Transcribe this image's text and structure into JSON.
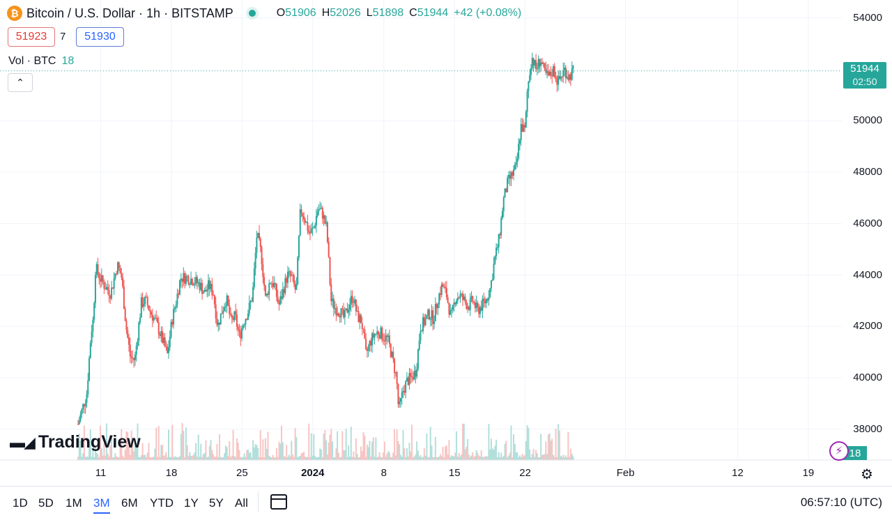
{
  "header": {
    "icon_letter": "₿",
    "title": "Bitcoin / U.S. Dollar · 1h · BITSTAMP",
    "ohlc": {
      "o_label": "O",
      "o": "51906",
      "h_label": "H",
      "h": "52026",
      "l_label": "L",
      "l": "51898",
      "c_label": "C",
      "c": "51944",
      "change": "+42 (+0.08%)"
    }
  },
  "trade": {
    "sell": "51923",
    "spread": "7",
    "buy": "51930"
  },
  "volume_indicator": {
    "label": "Vol · BTC",
    "value": "18"
  },
  "price_tag": {
    "price": "51944",
    "countdown": "02:50"
  },
  "volume_tag": "18",
  "watermark": "TradingView",
  "ranges": [
    {
      "label": "1D",
      "active": false
    },
    {
      "label": "5D",
      "active": false
    },
    {
      "label": "1M",
      "active": false
    },
    {
      "label": "3M",
      "active": true
    },
    {
      "label": "6M",
      "active": false
    },
    {
      "label": "YTD",
      "active": false
    },
    {
      "label": "1Y",
      "active": false
    },
    {
      "label": "5Y",
      "active": false
    },
    {
      "label": "All",
      "active": false
    }
  ],
  "clock": "06:57:10 (UTC)",
  "colors": {
    "up": "#26a69a",
    "down": "#ef5350",
    "accent": "#2962ff"
  },
  "icons": [
    "bitcoin-icon",
    "market-open-dot",
    "chevron-up-icon",
    "calendar-icon",
    "settings-icon",
    "lightning-icon",
    "tradingview-logo"
  ],
  "chart_data": {
    "type": "candlestick",
    "ylim": [
      36800,
      54700
    ],
    "y_ticks": [
      54000,
      50000,
      48000,
      46000,
      44000,
      42000,
      40000,
      38000
    ],
    "x_ticks": [
      {
        "label": "11",
        "pos": 0.052,
        "bold": false
      },
      {
        "label": "18",
        "pos": 0.214,
        "bold": false
      },
      {
        "label": "25",
        "pos": 0.376,
        "bold": false
      },
      {
        "label": "2024",
        "pos": 0.538,
        "bold": true
      },
      {
        "label": "8",
        "pos": 0.701,
        "bold": false
      },
      {
        "label": "15",
        "pos": 0.863,
        "bold": false
      },
      {
        "label": "22",
        "pos": 1.025,
        "bold": false
      },
      {
        "label": "Feb",
        "pos": 1.255,
        "bold": false
      },
      {
        "label": "12",
        "pos": 1.512,
        "bold": false
      },
      {
        "label": "19",
        "pos": 1.674,
        "bold": false
      }
    ],
    "last_price": 51944,
    "close_path": [
      [
        0.0,
        38200
      ],
      [
        0.01,
        38800
      ],
      [
        0.02,
        39400
      ],
      [
        0.03,
        41800
      ],
      [
        0.035,
        42300
      ],
      [
        0.04,
        44300
      ],
      [
        0.05,
        43900
      ],
      [
        0.06,
        43600
      ],
      [
        0.075,
        43300
      ],
      [
        0.09,
        44400
      ],
      [
        0.1,
        43900
      ],
      [
        0.11,
        42000
      ],
      [
        0.12,
        40800
      ],
      [
        0.13,
        40700
      ],
      [
        0.145,
        42900
      ],
      [
        0.155,
        43000
      ],
      [
        0.165,
        42600
      ],
      [
        0.18,
        42100
      ],
      [
        0.195,
        41400
      ],
      [
        0.205,
        40900
      ],
      [
        0.215,
        42200
      ],
      [
        0.225,
        43000
      ],
      [
        0.235,
        43900
      ],
      [
        0.25,
        43900
      ],
      [
        0.265,
        43800
      ],
      [
        0.28,
        43600
      ],
      [
        0.29,
        43300
      ],
      [
        0.3,
        43600
      ],
      [
        0.31,
        43300
      ],
      [
        0.32,
        42000
      ],
      [
        0.33,
        42600
      ],
      [
        0.34,
        43100
      ],
      [
        0.35,
        42200
      ],
      [
        0.36,
        42400
      ],
      [
        0.37,
        41600
      ],
      [
        0.38,
        42200
      ],
      [
        0.39,
        42600
      ],
      [
        0.4,
        43200
      ],
      [
        0.41,
        45600
      ],
      [
        0.42,
        44800
      ],
      [
        0.43,
        43000
      ],
      [
        0.44,
        43800
      ],
      [
        0.45,
        43600
      ],
      [
        0.46,
        42800
      ],
      [
        0.47,
        43400
      ],
      [
        0.48,
        44000
      ],
      [
        0.49,
        43900
      ],
      [
        0.5,
        43300
      ],
      [
        0.51,
        46600
      ],
      [
        0.52,
        46200
      ],
      [
        0.53,
        45600
      ],
      [
        0.54,
        45800
      ],
      [
        0.55,
        46600
      ],
      [
        0.56,
        46400
      ],
      [
        0.57,
        45800
      ],
      [
        0.58,
        43000
      ],
      [
        0.59,
        42700
      ],
      [
        0.6,
        42600
      ],
      [
        0.61,
        42300
      ],
      [
        0.62,
        42800
      ],
      [
        0.63,
        43200
      ],
      [
        0.64,
        42400
      ],
      [
        0.65,
        42200
      ],
      [
        0.66,
        40900
      ],
      [
        0.67,
        41400
      ],
      [
        0.68,
        41700
      ],
      [
        0.69,
        41800
      ],
      [
        0.7,
        41600
      ],
      [
        0.71,
        41500
      ],
      [
        0.72,
        40800
      ],
      [
        0.73,
        40000
      ],
      [
        0.735,
        38700
      ],
      [
        0.745,
        39500
      ],
      [
        0.755,
        39900
      ],
      [
        0.765,
        40000
      ],
      [
        0.775,
        40300
      ],
      [
        0.785,
        42000
      ],
      [
        0.795,
        42200
      ],
      [
        0.805,
        42500
      ],
      [
        0.815,
        42300
      ],
      [
        0.825,
        43100
      ],
      [
        0.835,
        43600
      ],
      [
        0.845,
        43200
      ],
      [
        0.855,
        42300
      ],
      [
        0.865,
        43100
      ],
      [
        0.875,
        43200
      ],
      [
        0.885,
        43000
      ],
      [
        0.895,
        42800
      ],
      [
        0.905,
        43000
      ],
      [
        0.915,
        42600
      ],
      [
        0.925,
        42800
      ],
      [
        0.935,
        43000
      ],
      [
        0.945,
        43500
      ],
      [
        0.955,
        44600
      ],
      [
        0.965,
        45400
      ],
      [
        0.975,
        46900
      ],
      [
        0.985,
        47600
      ],
      [
        0.995,
        47900
      ],
      [
        1.005,
        48200
      ],
      [
        1.015,
        49800
      ],
      [
        1.025,
        49600
      ],
      [
        1.03,
        51200
      ],
      [
        1.04,
        52500
      ],
      [
        1.05,
        52000
      ],
      [
        1.06,
        52400
      ],
      [
        1.07,
        51800
      ],
      [
        1.08,
        51700
      ],
      [
        1.09,
        52000
      ],
      [
        1.1,
        51500
      ],
      [
        1.115,
        52000
      ],
      [
        1.125,
        51700
      ],
      [
        1.135,
        51944
      ]
    ]
  }
}
